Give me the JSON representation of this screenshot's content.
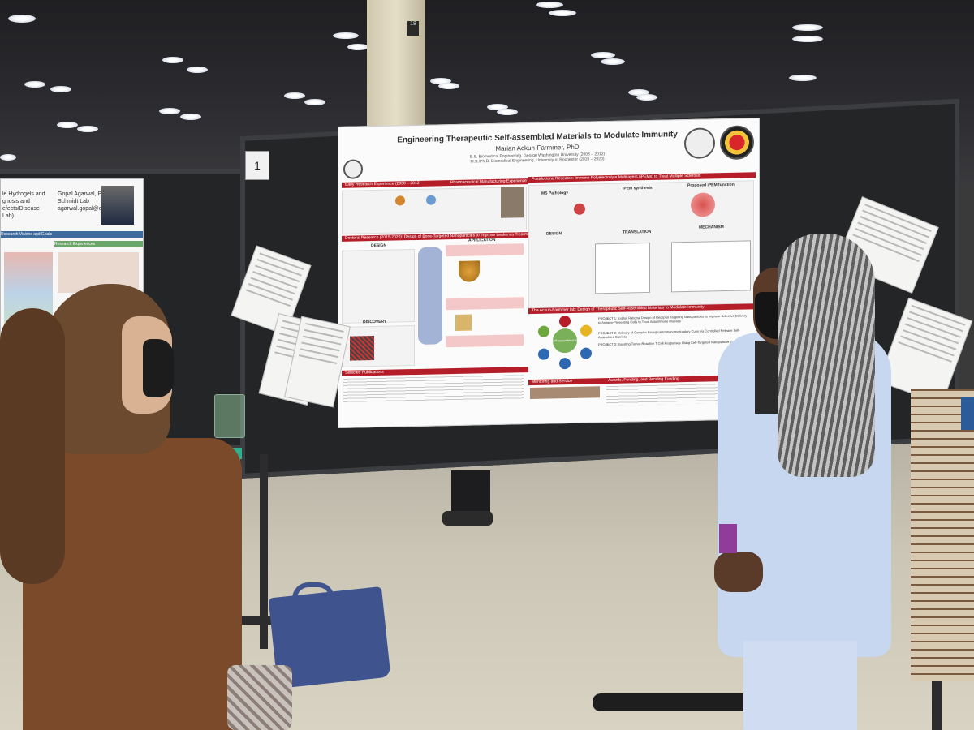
{
  "scene": {
    "description_colors": {
      "board": "#232526",
      "poster_accent": "#b51e28",
      "floor": "#cbc6b6",
      "jacket_light_blue": "#c7d7ef",
      "jacket_brown": "#7a4a2a"
    }
  },
  "board_number": "1",
  "pillar_sign": "18",
  "poster": {
    "title": "Engineering Therapeutic Self-assembled Materials to Modulate Immunity",
    "author": "Marian Ackun-Farmmer, PhD",
    "degrees": [
      "B.S. Biomedical Engineering, George Washington University (2008 – 2012)",
      "M.S./Ph.D. Biomedical Engineering, University of Rochester (2015 – 2020)"
    ],
    "sections": {
      "early": "Early Research Experience (2008 – 2012)",
      "pharma": "Pharmaceutical Manufacturing Experience",
      "postdoc": "Postdoctoral Research: Immune Polyelectrolyte Multilayers (iPEMs) to Treat Multiple Sclerosis",
      "doctoral": "Doctoral Research (2015-2020): Design of Bone-Targeted Nanoparticles to Improve Leukemia Treatments",
      "lab": "The Ackun-Farmmer lab: Design of Therapeutic Self-Assembled Materials to Modulate Immunity",
      "pubs": "Selected Publications",
      "mentoring": "Mentoring and Service",
      "awards": "Awards, Funding, and Pending Funding"
    },
    "labels": {
      "design": "DESIGN",
      "application": "APPLICATION",
      "discovery": "DISCOVERY",
      "ms_pathology": "MS Pathology",
      "ipem_synthesis": "iPEM synthesis",
      "proposed_function": "Proposed iPEM function",
      "translation": "TRANSLATION",
      "mechanism": "MECHANISM",
      "center": "Self-assembled materials"
    },
    "projects": [
      "PROJECT 1: Exploit Rational Design of Receptor Targeting Nanoparticles to Improve Selective Delivery to Antigen-Presenting Cells to Treat Autoimmune Disease",
      "PROJECT 2: Delivery of Complex Biological Immunomodulatory Cues via Controlled Release Self-Assembled Carriers",
      "PROJECT 3: Boosting Tumor-Reactive T Cell Responses Using Cell-Targeted Nanoparticle Delivery"
    ]
  },
  "left_poster": {
    "title_lines": [
      "le Hydrogels and",
      "gnosis and",
      "efects/Disease",
      "Lab)"
    ],
    "name_lines": [
      "Gopal Agarwal, Ph.D.",
      "Schmidt Lab",
      "agarwal.gopal@edu"
    ],
    "sub_headers": [
      "Research Visions and Goals",
      "Research Experiences"
    ]
  }
}
